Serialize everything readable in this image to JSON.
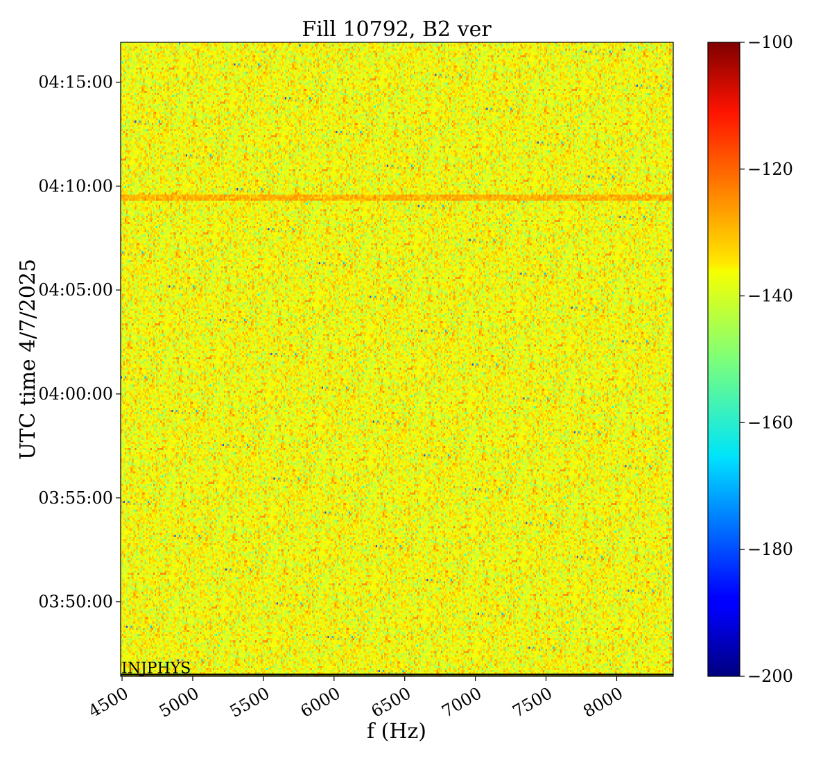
{
  "chart_data": {
    "type": "heatmap",
    "title": "Fill 10792, B2 ver",
    "xlabel": "f (Hz)",
    "ylabel": "UTC time 4/7/2025",
    "xlim": [
      4490,
      8400
    ],
    "x_ticks": [
      4500,
      5000,
      5500,
      6000,
      6500,
      7000,
      7500,
      8000
    ],
    "x_tick_labels": [
      "4500",
      "5000",
      "5500",
      "6000",
      "6500",
      "7000",
      "7500",
      "8000"
    ],
    "y_ticks": [
      "03:50:00",
      "03:55:00",
      "04:00:00",
      "04:05:00",
      "04:10:00",
      "04:15:00"
    ],
    "y_range": [
      "03:46:25",
      "04:16:55"
    ],
    "colorbar": {
      "colormap": "jet",
      "range": [
        -200,
        -100
      ],
      "ticks": [
        -200,
        -180,
        -160,
        -140,
        -120,
        -100
      ],
      "tick_labels": [
        "−200",
        "−180",
        "−160",
        "−140",
        "−120",
        "−100"
      ]
    },
    "background_level": -138,
    "noise_spread": 5,
    "features": [
      {
        "type": "horizontal_band",
        "time": "04:09:30",
        "level": -130,
        "extent": "full frequency range"
      }
    ],
    "annotation": {
      "text": "INJPHYS",
      "time": "03:46:30"
    }
  }
}
